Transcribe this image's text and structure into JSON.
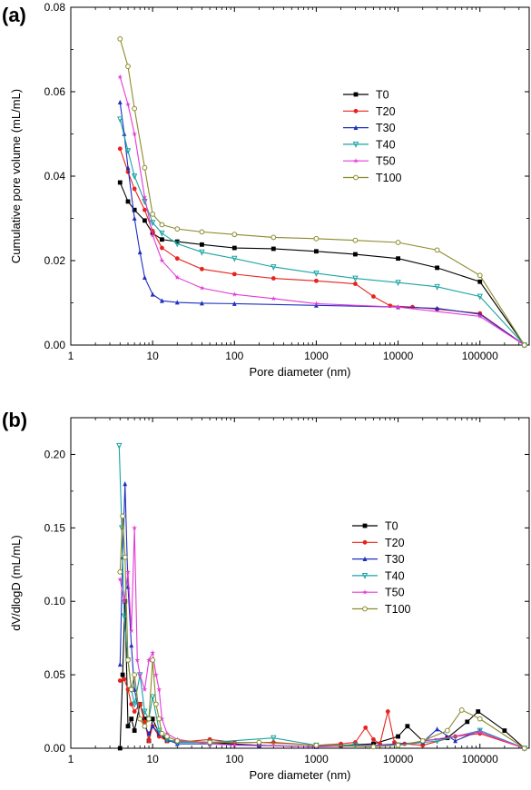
{
  "chart_data": [
    {
      "panel_label": "(a)",
      "type": "line",
      "x_scale": "log",
      "xlabel": "Pore diameter (nm)",
      "ylabel": "Cumulative pore volume (mL/mL)",
      "xlim": [
        1,
        400000
      ],
      "ylim": [
        0,
        0.08
      ],
      "xticks": [
        1,
        10,
        100,
        1000,
        10000,
        100000
      ],
      "xtick_labels": [
        "1",
        "10",
        "100",
        "1000",
        "10000",
        "100000"
      ],
      "yticks": [
        0,
        0.02,
        0.04,
        0.06,
        0.08
      ],
      "ytick_labels": [
        "0.00",
        "0.02",
        "0.04",
        "0.06",
        "0.08"
      ],
      "legend_position": "top-right",
      "series": [
        {
          "name": "T0",
          "color": "#000000",
          "marker": "square",
          "x": [
            4,
            5,
            6,
            8,
            10,
            13,
            20,
            40,
            100,
            300,
            1000,
            3000,
            10000,
            30000,
            100000,
            350000
          ],
          "y": [
            0.0385,
            0.034,
            0.032,
            0.0295,
            0.0265,
            0.025,
            0.0245,
            0.0238,
            0.023,
            0.0228,
            0.0222,
            0.0215,
            0.0205,
            0.0183,
            0.015,
            0.0
          ]
        },
        {
          "name": "T20",
          "color": "#e8221c",
          "marker": "circle",
          "x": [
            4,
            5,
            6,
            8,
            10,
            13,
            20,
            40,
            100,
            300,
            1000,
            3000,
            5000,
            8000,
            15000,
            30000,
            100000,
            350000
          ],
          "y": [
            0.0465,
            0.041,
            0.037,
            0.032,
            0.027,
            0.023,
            0.0205,
            0.018,
            0.0168,
            0.0158,
            0.0152,
            0.0145,
            0.0115,
            0.0093,
            0.009,
            0.0085,
            0.0075,
            0.0
          ]
        },
        {
          "name": "T30",
          "color": "#1f2fbf",
          "marker": "triangle",
          "x": [
            4,
            4.5,
            5,
            6,
            7,
            8,
            10,
            13,
            20,
            40,
            100,
            1000,
            10000,
            30000,
            100000,
            350000
          ],
          "y": [
            0.0575,
            0.05,
            0.042,
            0.03,
            0.022,
            0.016,
            0.012,
            0.0105,
            0.0101,
            0.0099,
            0.0098,
            0.0094,
            0.009,
            0.0087,
            0.0073,
            0.0
          ]
        },
        {
          "name": "T40",
          "color": "#1aa3a3",
          "marker": "triangle-down",
          "x": [
            4,
            5,
            6,
            8,
            10,
            13,
            20,
            40,
            100,
            300,
            1000,
            3000,
            10000,
            30000,
            100000,
            350000
          ],
          "y": [
            0.0535,
            0.046,
            0.04,
            0.034,
            0.029,
            0.0265,
            0.024,
            0.022,
            0.0205,
            0.0185,
            0.017,
            0.0158,
            0.0148,
            0.0138,
            0.0115,
            0.0
          ]
        },
        {
          "name": "T50",
          "color": "#e23bd6",
          "marker": "star",
          "x": [
            4,
            5,
            6,
            8,
            10,
            13,
            20,
            40,
            100,
            300,
            1000,
            10000,
            100000,
            350000
          ],
          "y": [
            0.0635,
            0.057,
            0.05,
            0.035,
            0.026,
            0.02,
            0.016,
            0.0135,
            0.012,
            0.011,
            0.0098,
            0.009,
            0.0068,
            0.0
          ]
        },
        {
          "name": "T100",
          "color": "#8a8a2a",
          "marker": "circle-open",
          "x": [
            4,
            5,
            6,
            8,
            10,
            13,
            20,
            40,
            100,
            300,
            1000,
            3000,
            10000,
            30000,
            100000,
            350000
          ],
          "y": [
            0.0725,
            0.066,
            0.056,
            0.042,
            0.031,
            0.0285,
            0.0275,
            0.0268,
            0.0262,
            0.0255,
            0.0252,
            0.0248,
            0.0243,
            0.0225,
            0.0165,
            0.0
          ]
        }
      ]
    },
    {
      "panel_label": "(b)",
      "type": "line",
      "x_scale": "log",
      "xlabel": "Pore diameter (nm)",
      "ylabel": "dV/dlogD (mL/mL)",
      "xlim": [
        1,
        400000
      ],
      "ylim": [
        0,
        0.225
      ],
      "xticks": [
        1,
        10,
        100,
        1000,
        10000,
        100000
      ],
      "xtick_labels": [
        "1",
        "10",
        "100",
        "1000",
        "10000",
        "100000"
      ],
      "yticks": [
        0,
        0.05,
        0.1,
        0.15,
        0.2
      ],
      "ytick_labels": [
        "0.00",
        "0.05",
        "0.10",
        "0.15",
        "0.20"
      ],
      "legend_position": "top-right",
      "series": [
        {
          "name": "T0",
          "color": "#000000",
          "marker": "square",
          "x": [
            4,
            4.3,
            4.6,
            5,
            5.5,
            6,
            7,
            8,
            9,
            10,
            12,
            15,
            20,
            50,
            200,
            1000,
            2000,
            5000,
            10000,
            13000,
            20000,
            40000,
            70000,
            95000,
            200000,
            350000
          ],
          "y": [
            0.0,
            0.05,
            0.1,
            0.015,
            0.02,
            0.012,
            0.03,
            0.02,
            0.005,
            0.02,
            0.01,
            0.005,
            0.005,
            0.004,
            0.002,
            0.001,
            0.002,
            0.003,
            0.008,
            0.015,
            0.005,
            0.007,
            0.018,
            0.025,
            0.012,
            0.0
          ]
        },
        {
          "name": "T20",
          "color": "#e8221c",
          "marker": "circle",
          "x": [
            4,
            4.5,
            5,
            5.5,
            6,
            7,
            8,
            9,
            10,
            12,
            15,
            20,
            50,
            100,
            300,
            1000,
            2000,
            3000,
            4000,
            5000,
            6000,
            7500,
            9000,
            12000,
            20000,
            50000,
            100000,
            350000
          ],
          "y": [
            0.046,
            0.047,
            0.04,
            0.03,
            0.025,
            0.03,
            0.018,
            0.005,
            0.015,
            0.008,
            0.005,
            0.004,
            0.006,
            0.004,
            0.004,
            0.002,
            0.003,
            0.004,
            0.014,
            0.006,
            0.003,
            0.025,
            0.004,
            0.003,
            0.002,
            0.008,
            0.01,
            0.0
          ]
        },
        {
          "name": "T30",
          "color": "#1f2fbf",
          "marker": "triangle",
          "x": [
            4,
            4.3,
            4.6,
            5,
            5.5,
            6,
            7,
            8,
            9,
            10,
            12,
            15,
            20,
            50,
            200,
            1000,
            5000,
            20000,
            30000,
            50000,
            100000,
            350000
          ],
          "y": [
            0.057,
            0.13,
            0.18,
            0.11,
            0.07,
            0.04,
            0.02,
            0.015,
            0.01,
            0.015,
            0.01,
            0.006,
            0.003,
            0.003,
            0.002,
            0.001,
            0.002,
            0.004,
            0.013,
            0.005,
            0.012,
            0.0
          ]
        },
        {
          "name": "T40",
          "color": "#1aa3a3",
          "marker": "triangle-down",
          "x": [
            3.9,
            4.2,
            4.5,
            5,
            5.5,
            6,
            7,
            8,
            9,
            10,
            12,
            15,
            20,
            50,
            300,
            1000,
            3000,
            10000,
            30000,
            100000,
            350000
          ],
          "y": [
            0.206,
            0.15,
            0.09,
            0.06,
            0.04,
            0.03,
            0.05,
            0.025,
            0.02,
            0.035,
            0.012,
            0.006,
            0.004,
            0.004,
            0.007,
            0.002,
            0.002,
            0.002,
            0.005,
            0.012,
            0.0
          ]
        },
        {
          "name": "T50",
          "color": "#e23bd6",
          "marker": "star",
          "x": [
            4,
            4.5,
            5,
            5.5,
            6,
            6.5,
            7,
            8,
            9,
            10,
            11,
            12,
            13,
            15,
            20,
            50,
            100,
            1000,
            10000,
            100000,
            350000
          ],
          "y": [
            0.115,
            0.1,
            0.12,
            0.08,
            0.15,
            0.06,
            0.05,
            0.04,
            0.06,
            0.065,
            0.05,
            0.04,
            0.02,
            0.01,
            0.006,
            0.003,
            0.002,
            0.001,
            0.002,
            0.011,
            0.0
          ]
        },
        {
          "name": "T100",
          "color": "#8a8a2a",
          "marker": "circle-open",
          "x": [
            4,
            4.3,
            4.6,
            5,
            5.5,
            6,
            7,
            8,
            9,
            10,
            11,
            12,
            13,
            15,
            20,
            50,
            200,
            1000,
            5000,
            10000,
            20000,
            40000,
            60000,
            100000,
            350000
          ],
          "y": [
            0.12,
            0.158,
            0.13,
            0.06,
            0.04,
            0.05,
            0.02,
            0.015,
            0.02,
            0.06,
            0.03,
            0.02,
            0.01,
            0.008,
            0.005,
            0.004,
            0.004,
            0.002,
            0.001,
            0.002,
            0.005,
            0.012,
            0.026,
            0.02,
            0.0
          ]
        }
      ]
    }
  ]
}
